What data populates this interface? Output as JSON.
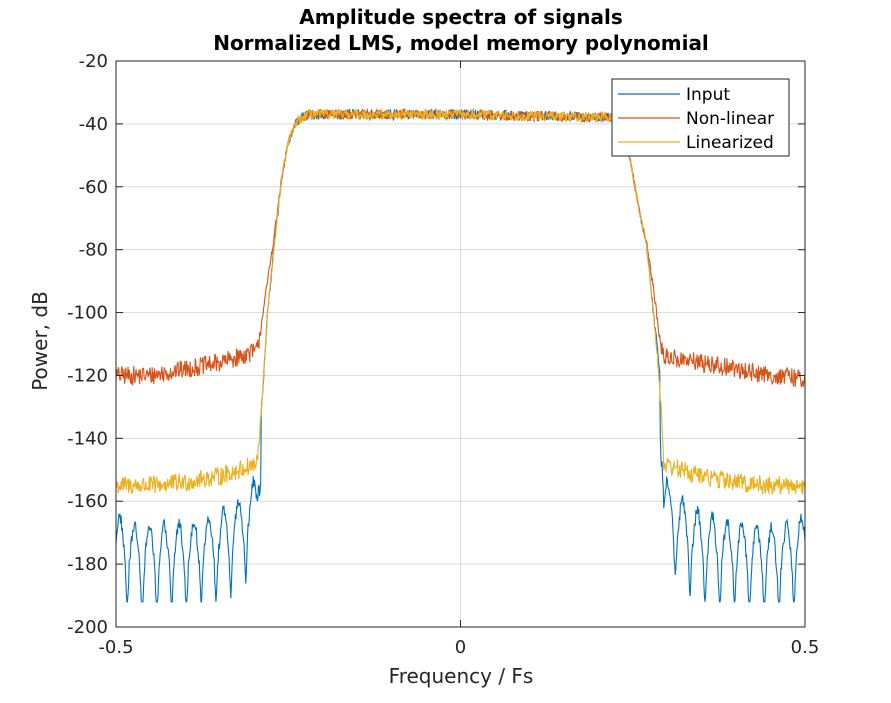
{
  "chart_data": {
    "type": "line",
    "title": "Amplitude spectra of signals",
    "subtitle": "Normalized LMS, model memory polynomial",
    "xlabel": "Frequency / Fs",
    "ylabel": "Power, dB",
    "xlim": [
      -0.5,
      0.5
    ],
    "ylim": [
      -200,
      -20
    ],
    "xticks": [
      -0.5,
      0,
      0.5
    ],
    "xtick_labels": [
      "-0.5",
      "0",
      "0.5"
    ],
    "yticks": [
      -200,
      -180,
      -160,
      -140,
      -120,
      -100,
      -80,
      -60,
      -40,
      -20
    ],
    "ytick_labels": [
      "-200",
      "-180",
      "-160",
      "-140",
      "-120",
      "-100",
      "-80",
      "-60",
      "-40",
      "-20"
    ],
    "grid": true,
    "legend_position": "top-right",
    "series": [
      {
        "name": "Input",
        "color": "#0072BD",
        "x": [
          -0.5,
          -0.47,
          -0.44,
          -0.41,
          -0.38,
          -0.35,
          -0.32,
          -0.295,
          -0.29,
          -0.28,
          -0.27,
          -0.26,
          -0.25,
          -0.24,
          -0.23,
          -0.22,
          0,
          0.22,
          0.23,
          0.24,
          0.25,
          0.26,
          0.27,
          0.28,
          0.29,
          0.295,
          0.32,
          0.35,
          0.38,
          0.41,
          0.44,
          0.47,
          0.5
        ],
        "y": [
          -172,
          -176,
          -176,
          -175,
          -174,
          -172,
          -168,
          -160,
          -135,
          -100,
          -78,
          -58,
          -46,
          -40,
          -38,
          -37,
          -37,
          -38,
          -40,
          -44,
          -56,
          -68,
          -78,
          -100,
          -120,
          -160,
          -167,
          -172,
          -174,
          -175,
          -176,
          -176,
          -172
        ]
      },
      {
        "name": "Non-linear",
        "color": "#D95319",
        "x": [
          -0.5,
          -0.45,
          -0.4,
          -0.35,
          -0.32,
          -0.295,
          -0.29,
          -0.28,
          -0.27,
          -0.26,
          -0.25,
          -0.24,
          -0.23,
          -0.22,
          0,
          0.22,
          0.23,
          0.24,
          0.25,
          0.26,
          0.27,
          0.28,
          0.29,
          0.295,
          0.32,
          0.35,
          0.4,
          0.45,
          0.5
        ],
        "y": [
          -120,
          -120,
          -118,
          -116,
          -114,
          -112,
          -105,
          -90,
          -75,
          -58,
          -46,
          -40,
          -38,
          -37,
          -37,
          -38,
          -40,
          -44,
          -56,
          -68,
          -78,
          -92,
          -110,
          -114,
          -115,
          -116,
          -118,
          -120,
          -121
        ]
      },
      {
        "name": "Linearized",
        "color": "#EDB120",
        "x": [
          -0.5,
          -0.45,
          -0.4,
          -0.35,
          -0.32,
          -0.295,
          -0.29,
          -0.28,
          -0.27,
          -0.26,
          -0.25,
          -0.24,
          -0.23,
          -0.22,
          0,
          0.22,
          0.23,
          0.24,
          0.25,
          0.26,
          0.27,
          0.28,
          0.29,
          0.295,
          0.32,
          0.35,
          0.4,
          0.45,
          0.5
        ],
        "y": [
          -155,
          -155,
          -154,
          -152,
          -150,
          -148,
          -135,
          -100,
          -78,
          -58,
          -46,
          -40,
          -38,
          -37,
          -37,
          -38,
          -40,
          -44,
          -56,
          -68,
          -78,
          -100,
          -125,
          -148,
          -150,
          -152,
          -154,
          -155,
          -155
        ]
      }
    ]
  }
}
